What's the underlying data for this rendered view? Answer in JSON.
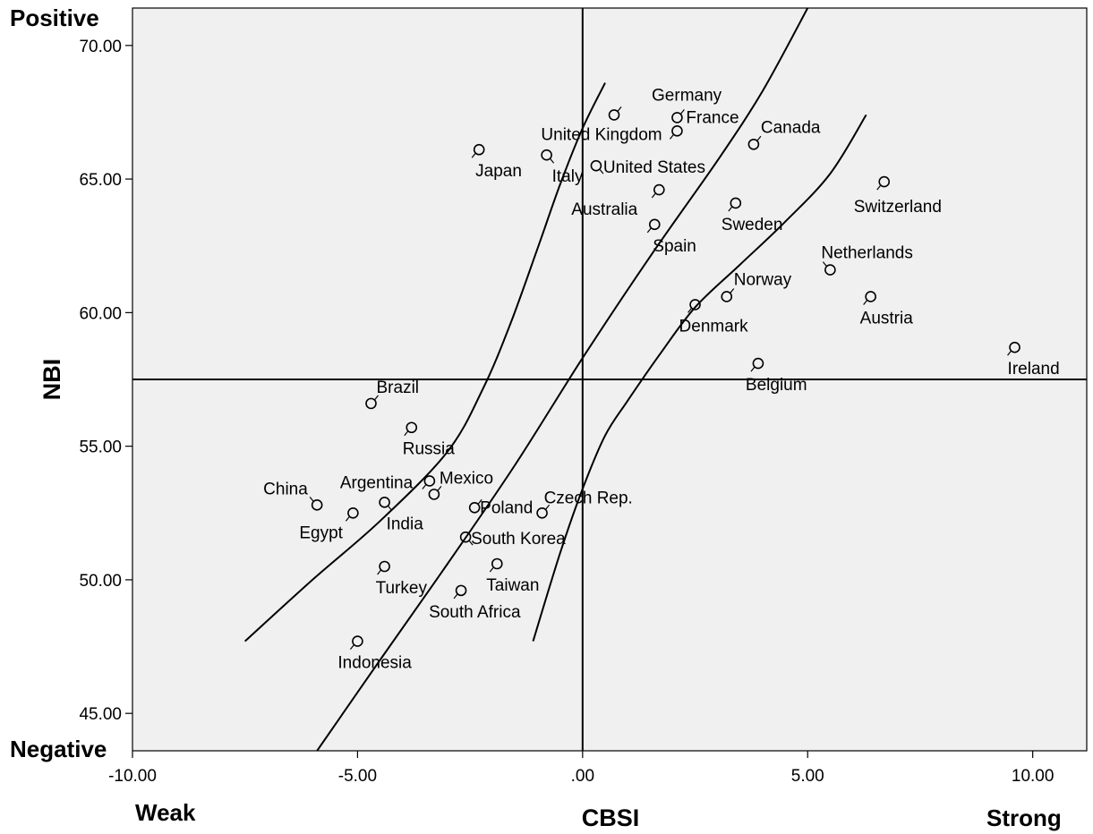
{
  "chart_data": {
    "type": "scatter",
    "xlabel": "CBSI",
    "ylabel": "NBI",
    "xlim": [
      -10,
      11.2
    ],
    "ylim": [
      43.6,
      71.4
    ],
    "x_ticks": [
      -10,
      -5,
      0,
      5,
      10
    ],
    "x_tick_labels": [
      "-10.00",
      "-5.00",
      ".00",
      "5.00",
      "10.00"
    ],
    "y_ticks": [
      45,
      50,
      55,
      60,
      65,
      70
    ],
    "y_tick_labels": [
      "45.00",
      "50.00",
      "55.00",
      "60.00",
      "65.00",
      "70.00"
    ],
    "x_end_labels": {
      "left": "Weak",
      "right": "Strong"
    },
    "y_end_labels": {
      "top": "Positive",
      "bottom": "Negative"
    },
    "reference_lines": {
      "vertical_x": 0,
      "horizontal_y": 57.5
    },
    "grid": false,
    "background_color": "#f0f0f0",
    "points": [
      {
        "name": "Germany",
        "x": 0.7,
        "y": 67.4
      },
      {
        "name": "France",
        "x": 2.1,
        "y": 67.3
      },
      {
        "name": "United Kingdom",
        "x": 2.1,
        "y": 66.8
      },
      {
        "name": "Canada",
        "x": 3.8,
        "y": 66.3
      },
      {
        "name": "Japan",
        "x": -2.3,
        "y": 66.1
      },
      {
        "name": "Italy",
        "x": -0.8,
        "y": 65.9
      },
      {
        "name": "United States",
        "x": 0.3,
        "y": 65.5
      },
      {
        "name": "Switzerland",
        "x": 6.7,
        "y": 64.9
      },
      {
        "name": "Australia",
        "x": 1.7,
        "y": 64.6
      },
      {
        "name": "Sweden",
        "x": 3.4,
        "y": 64.1
      },
      {
        "name": "Spain",
        "x": 1.6,
        "y": 63.3
      },
      {
        "name": "Netherlands",
        "x": 5.5,
        "y": 61.6
      },
      {
        "name": "Norway",
        "x": 3.2,
        "y": 60.6
      },
      {
        "name": "Austria",
        "x": 6.4,
        "y": 60.6
      },
      {
        "name": "Denmark",
        "x": 2.5,
        "y": 60.3
      },
      {
        "name": "Ireland",
        "x": 9.6,
        "y": 58.7
      },
      {
        "name": "Belgium",
        "x": 3.9,
        "y": 58.1
      },
      {
        "name": "Brazil",
        "x": -4.7,
        "y": 56.6
      },
      {
        "name": "Russia",
        "x": -3.8,
        "y": 55.7
      },
      {
        "name": "Argentina",
        "x": -3.4,
        "y": 53.7
      },
      {
        "name": "Mexico",
        "x": -3.3,
        "y": 53.2
      },
      {
        "name": "China",
        "x": -5.9,
        "y": 52.8
      },
      {
        "name": "India",
        "x": -4.4,
        "y": 52.9
      },
      {
        "name": "Poland",
        "x": -2.4,
        "y": 52.7
      },
      {
        "name": "Egypt",
        "x": -5.1,
        "y": 52.5
      },
      {
        "name": "Czech Rep.",
        "x": -0.9,
        "y": 52.5
      },
      {
        "name": "South Korea",
        "x": -2.6,
        "y": 51.6
      },
      {
        "name": "Turkey",
        "x": -4.4,
        "y": 50.5
      },
      {
        "name": "Taiwan",
        "x": -1.9,
        "y": 50.6
      },
      {
        "name": "South Africa",
        "x": -2.7,
        "y": 49.6
      },
      {
        "name": "Indonesia",
        "x": -5.0,
        "y": 47.7
      }
    ],
    "curves": [
      {
        "points": [
          [
            -7.5,
            47.7
          ],
          [
            -6.0,
            50.0
          ],
          [
            -4.5,
            52.2
          ],
          [
            -3.0,
            54.8
          ],
          [
            -2.2,
            57.2
          ],
          [
            -1.6,
            59.6
          ],
          [
            -1.0,
            62.4
          ],
          [
            -0.5,
            64.8
          ],
          [
            0.0,
            66.9
          ],
          [
            0.5,
            68.6
          ]
        ]
      },
      {
        "points": [
          [
            -5.9,
            43.6
          ],
          [
            -4.5,
            47.0
          ],
          [
            -3.0,
            50.6
          ],
          [
            -1.5,
            54.3
          ],
          [
            0.0,
            58.3
          ],
          [
            1.5,
            62.1
          ],
          [
            3.0,
            65.7
          ],
          [
            4.0,
            68.3
          ],
          [
            5.0,
            71.4
          ]
        ]
      },
      {
        "points": [
          [
            -1.1,
            47.7
          ],
          [
            -0.5,
            51.0
          ],
          [
            0.0,
            53.4
          ],
          [
            0.5,
            55.4
          ],
          [
            1.0,
            56.7
          ],
          [
            1.7,
            58.4
          ],
          [
            2.5,
            60.2
          ],
          [
            3.5,
            61.8
          ],
          [
            4.5,
            63.4
          ],
          [
            5.5,
            65.2
          ],
          [
            6.3,
            67.4
          ]
        ]
      }
    ]
  }
}
